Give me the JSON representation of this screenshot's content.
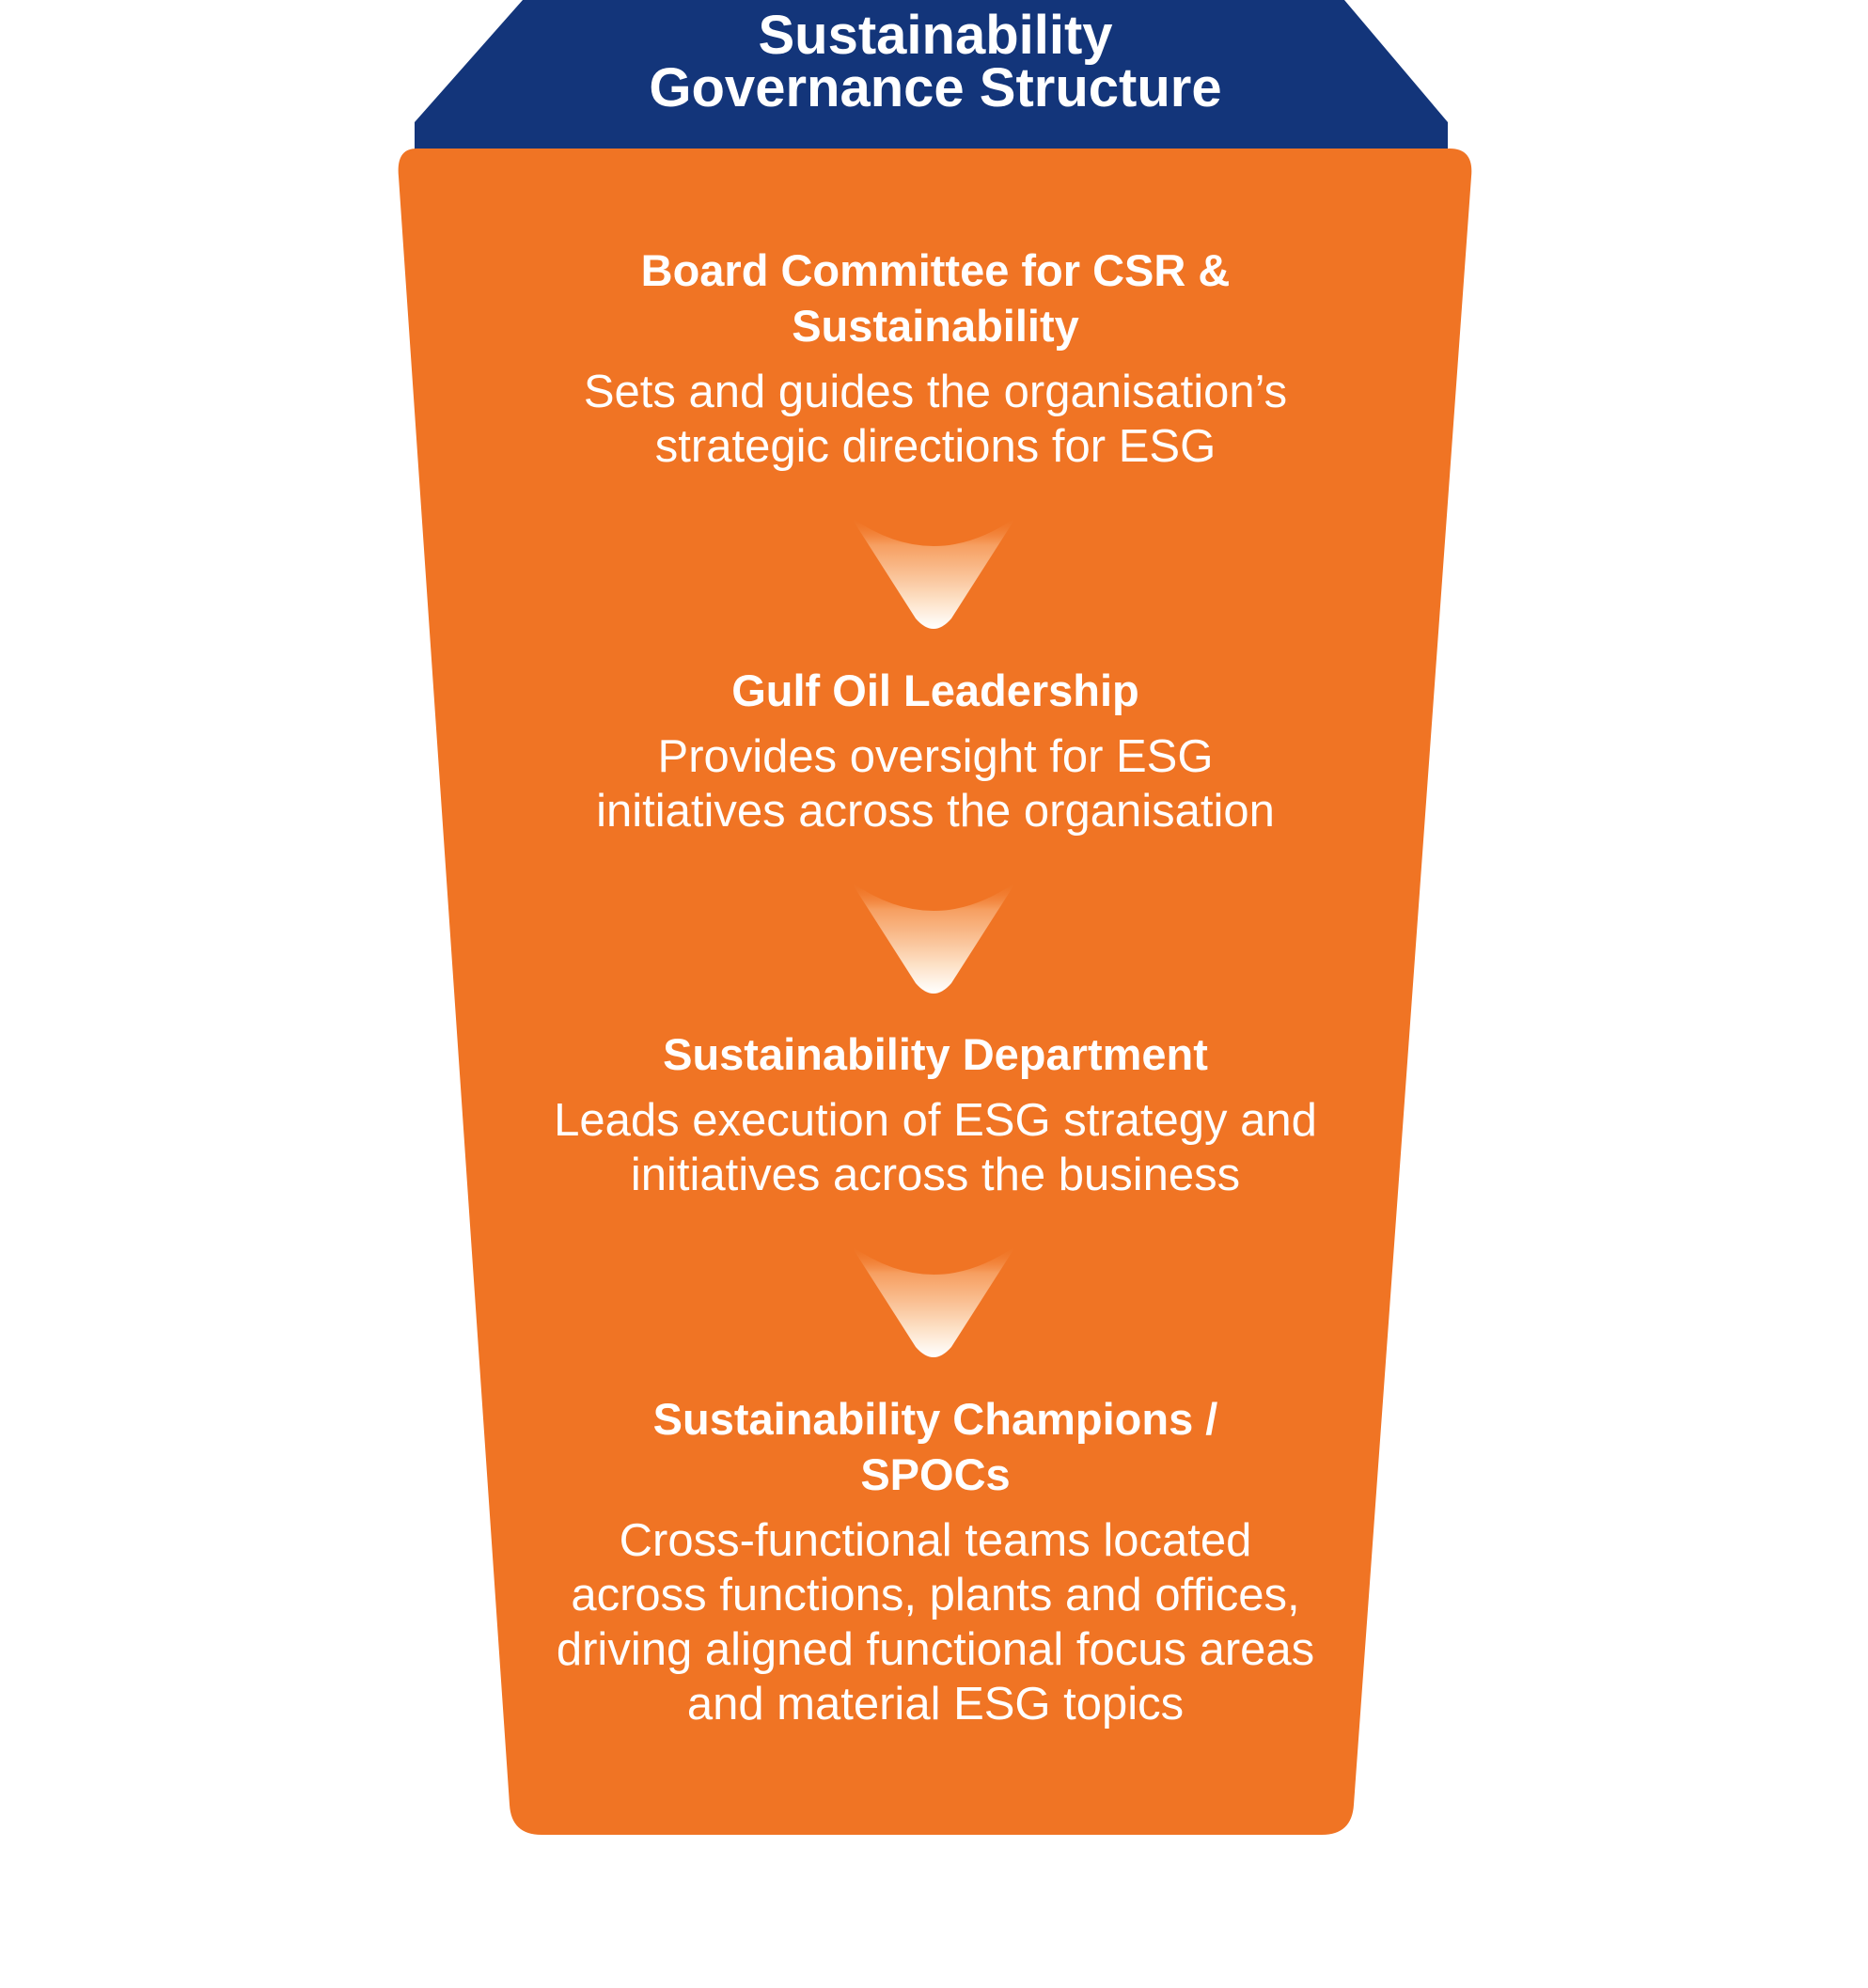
{
  "header": {
    "title_lines": [
      "Sustainability",
      "Governance Structure"
    ]
  },
  "levels": [
    {
      "title_lines": [
        "Board Committee for CSR &",
        "Sustainability"
      ],
      "description_lines": [
        "Sets and guides the organisation’s",
        "strategic directions for ESG"
      ]
    },
    {
      "title_lines": [
        "Gulf Oil Leadership"
      ],
      "description_lines": [
        "Provides oversight for ESG",
        "initiatives across the organisation"
      ]
    },
    {
      "title_lines": [
        "Sustainability Department"
      ],
      "description_lines": [
        "Leads execution of ESG strategy and",
        "initiatives across the business"
      ]
    },
    {
      "title_lines": [
        "Sustainability Champions /",
        "SPOCs"
      ],
      "description_lines": [
        "Cross-functional teams located",
        "across functions, plants and offices,",
        "driving aligned functional focus areas",
        "and material ESG topics"
      ]
    }
  ],
  "colors": {
    "header_navy": "#13357a",
    "body_orange": "#f07424",
    "text": "#ffffff"
  },
  "icons": {
    "flow_arrow": "down-chevron-arrow-icon"
  }
}
